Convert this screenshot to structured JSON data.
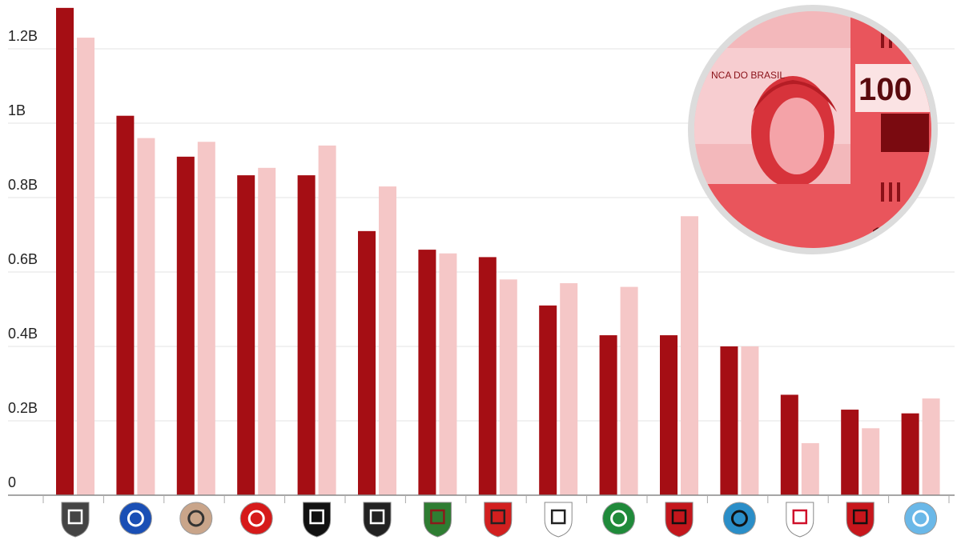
{
  "chart_data": {
    "type": "bar",
    "title": "",
    "xlabel": "",
    "ylabel": "",
    "ylim": [
      0,
      1.3
    ],
    "yticks": [
      {
        "value": 0,
        "label": "0"
      },
      {
        "value": 0.2,
        "label": "0.2B"
      },
      {
        "value": 0.4,
        "label": "0.4B"
      },
      {
        "value": 0.6,
        "label": "0.6B"
      },
      {
        "value": 0.8,
        "label": "0.8B"
      },
      {
        "value": 1.0,
        "label": "1B"
      },
      {
        "value": 1.2,
        "label": "1.2B"
      }
    ],
    "grid": true,
    "legend": "none",
    "categories": [
      "atletico-mineiro",
      "cruzeiro",
      "corinthians",
      "internacional",
      "botafogo",
      "vasco",
      "fluminense",
      "sao-paulo",
      "santos",
      "palmeiras",
      "flamengo",
      "gremio",
      "red-bull-bragantino",
      "sport",
      "bahia"
    ],
    "series": [
      {
        "color": "#a50e14",
        "values": [
          1.31,
          1.02,
          0.91,
          0.86,
          0.86,
          0.71,
          0.66,
          0.64,
          0.51,
          0.43,
          0.43,
          0.4,
          0.27,
          0.23,
          0.22
        ]
      },
      {
        "color": "#f5c7c7",
        "values": [
          1.23,
          0.96,
          0.95,
          0.88,
          0.94,
          0.83,
          0.65,
          0.58,
          0.57,
          0.56,
          0.75,
          0.4,
          0.14,
          0.18,
          0.26
        ]
      }
    ],
    "crests": [
      {
        "name": "atletico-mineiro-crest",
        "fill": "#444444",
        "accent": "#ffffff",
        "shape": "shield"
      },
      {
        "name": "cruzeiro-crest",
        "fill": "#1a4fb5",
        "accent": "#ffffff",
        "shape": "circle"
      },
      {
        "name": "corinthians-crest",
        "fill": "#c9a58a",
        "accent": "#333333",
        "shape": "circle"
      },
      {
        "name": "internacional-crest",
        "fill": "#d61a1a",
        "accent": "#ffffff",
        "shape": "circle"
      },
      {
        "name": "botafogo-crest",
        "fill": "#111111",
        "accent": "#ffffff",
        "shape": "shield"
      },
      {
        "name": "vasco-crest",
        "fill": "#222222",
        "accent": "#ffffff",
        "shape": "shield"
      },
      {
        "name": "fluminense-crest",
        "fill": "#2e7d32",
        "accent": "#8b1a1a",
        "shape": "shield"
      },
      {
        "name": "sao-paulo-crest",
        "fill": "#d21f1f",
        "accent": "#222222",
        "shape": "shield"
      },
      {
        "name": "santos-crest",
        "fill": "#ffffff",
        "accent": "#222222",
        "shape": "shield"
      },
      {
        "name": "palmeiras-crest",
        "fill": "#1f8a3a",
        "accent": "#ffffff",
        "shape": "circle"
      },
      {
        "name": "flamengo-crest",
        "fill": "#c4161c",
        "accent": "#111111",
        "shape": "shield"
      },
      {
        "name": "gremio-crest",
        "fill": "#2a8ec8",
        "accent": "#111111",
        "shape": "circle"
      },
      {
        "name": "red-bull-bragantino-crest",
        "fill": "#ffffff",
        "accent": "#d0102a",
        "shape": "shield"
      },
      {
        "name": "sport-crest",
        "fill": "#c7161c",
        "accent": "#111111",
        "shape": "shield"
      },
      {
        "name": "bahia-crest",
        "fill": "#6ab8e8",
        "accent": "#ffffff",
        "shape": "circle"
      }
    ]
  },
  "decoration": {
    "banknote_text_top": "NCA DO BRASIL",
    "banknote_value": "100",
    "banknote_value_partial": "10",
    "banknote_color": "#e0323a",
    "ring_color": "#dcdcdc"
  }
}
